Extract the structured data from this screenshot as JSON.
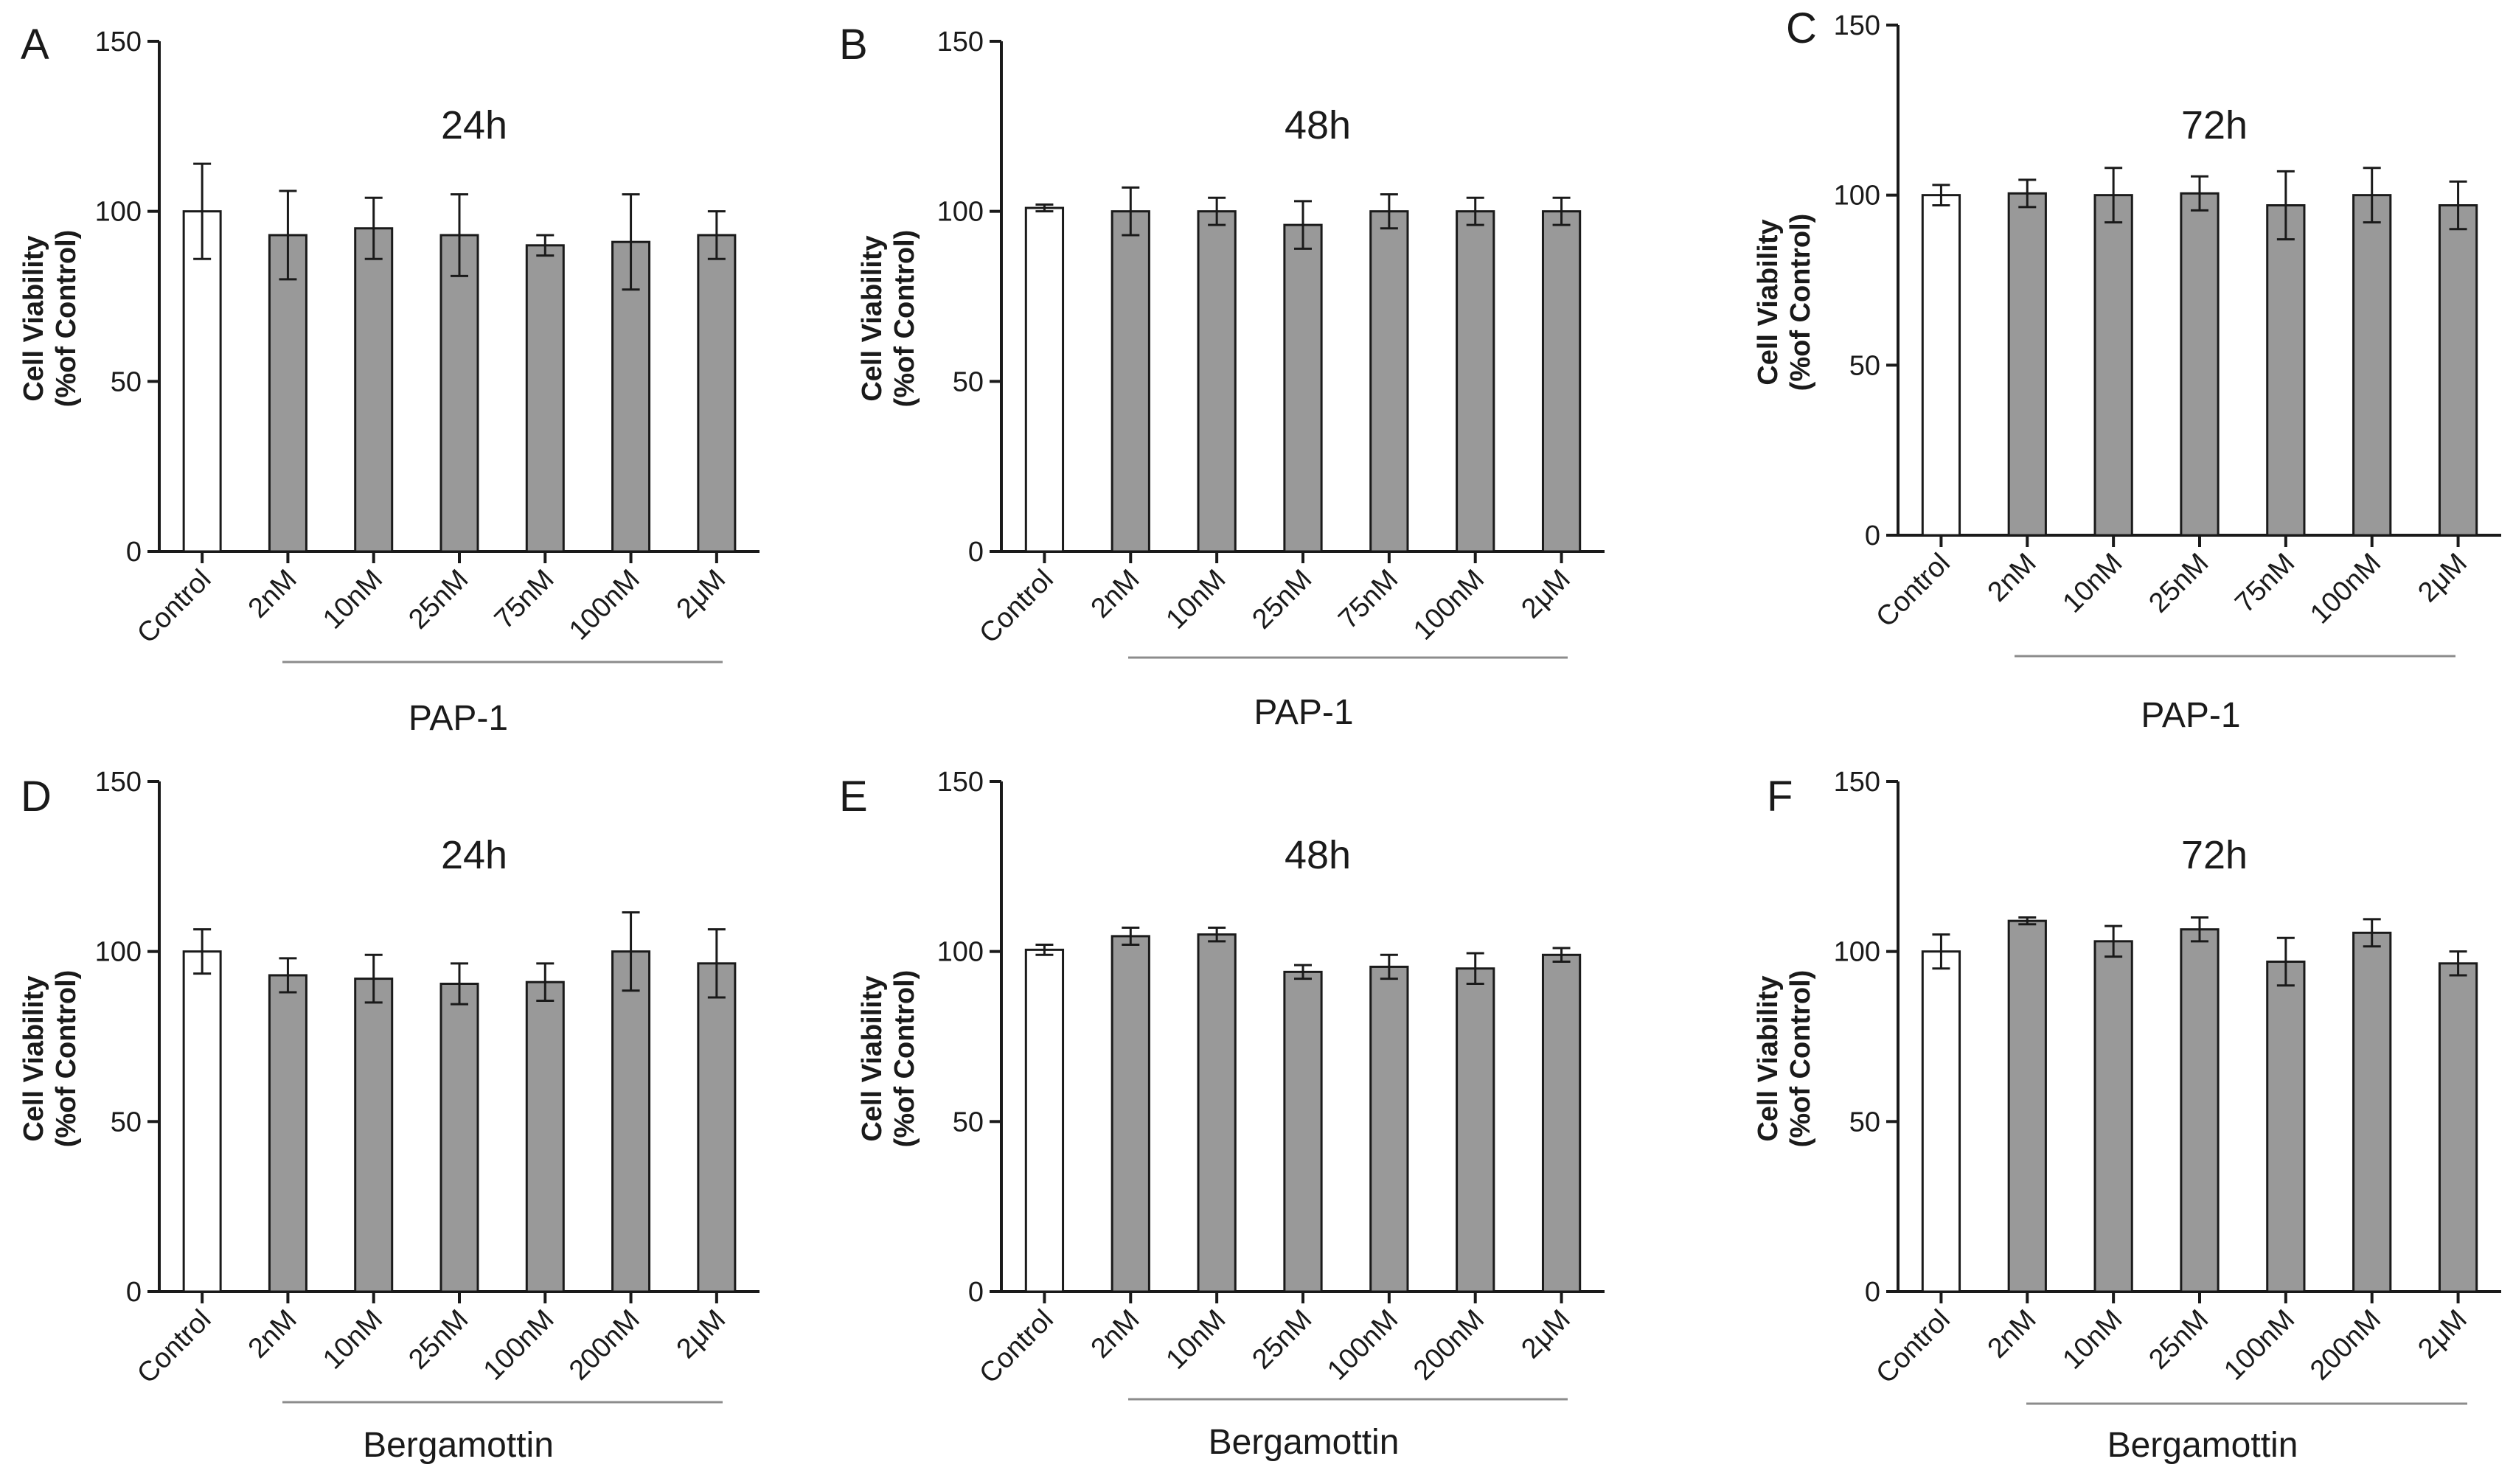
{
  "colors": {
    "control_fill": "#ffffff",
    "treatment_fill": "#999999",
    "bar_stroke": "#1a1a1a",
    "axis": "#1a1a1a",
    "group_line": "#8c8c8c"
  },
  "chart_data": [
    {
      "panel": "A",
      "type": "bar",
      "title": "24h",
      "ylabel_line1": "Cell Viability",
      "ylabel_line2": "(%of Control)",
      "ylim": [
        0,
        150
      ],
      "yticks": [
        "0",
        "50",
        "100",
        "150"
      ],
      "group_label": "PAP-1",
      "categories": [
        "Control",
        "2nM",
        "10nM",
        "25nM",
        "75nM",
        "100nM",
        "2μM"
      ],
      "values": [
        100,
        93,
        95,
        93,
        90,
        91,
        93
      ],
      "errors": [
        14,
        13,
        9,
        12,
        3,
        14,
        7
      ]
    },
    {
      "panel": "B",
      "type": "bar",
      "title": "48h",
      "ylabel_line1": "Cell Viability",
      "ylabel_line2": "(%of Control)",
      "ylim": [
        0,
        150
      ],
      "yticks": [
        "0",
        "50",
        "100",
        "150"
      ],
      "group_label": "PAP-1",
      "categories": [
        "Control",
        "2nM",
        "10nM",
        "25nM",
        "75nM",
        "100nM",
        "2μM"
      ],
      "values": [
        101,
        100,
        100,
        96,
        100,
        100,
        100
      ],
      "errors": [
        1,
        7,
        4,
        7,
        5,
        4,
        4
      ]
    },
    {
      "panel": "C",
      "type": "bar",
      "title": "72h",
      "ylabel_line1": "Cell Viability",
      "ylabel_line2": "(%of Control)",
      "ylim": [
        0,
        150
      ],
      "yticks": [
        "0",
        "50",
        "100",
        "150"
      ],
      "group_label": "PAP-1",
      "categories": [
        "Control",
        "2nM",
        "10nM",
        "25nM",
        "75nM",
        "100nM",
        "2μM"
      ],
      "values": [
        100,
        100.5,
        100,
        100.5,
        97,
        100,
        97
      ],
      "errors": [
        3,
        4,
        8,
        5,
        10,
        8,
        7
      ]
    },
    {
      "panel": "D",
      "type": "bar",
      "title": "24h",
      "ylabel_line1": "Cell Viability",
      "ylabel_line2": "(%of Control)",
      "ylim": [
        0,
        150
      ],
      "yticks": [
        "0",
        "50",
        "100",
        "150"
      ],
      "group_label": "Bergamottin",
      "categories": [
        "Control",
        "2nM",
        "10nM",
        "25nM",
        "100nM",
        "200nM",
        "2μM"
      ],
      "values": [
        100,
        93,
        92,
        90.5,
        91,
        100,
        96.5
      ],
      "errors": [
        6.5,
        5,
        7,
        6,
        5.5,
        11.5,
        10
      ]
    },
    {
      "panel": "E",
      "type": "bar",
      "title": "48h",
      "ylabel_line1": "Cell Viability",
      "ylabel_line2": "(%of Control)",
      "ylim": [
        0,
        150
      ],
      "yticks": [
        "0",
        "50",
        "100",
        "150"
      ],
      "group_label": "Bergamottin",
      "categories": [
        "Control",
        "2nM",
        "10nM",
        "25nM",
        "100nM",
        "200nM",
        "2μM"
      ],
      "values": [
        100.5,
        104.5,
        105,
        94,
        95.5,
        95,
        99
      ],
      "errors": [
        1.5,
        2.5,
        2,
        2,
        3.5,
        4.5,
        2
      ]
    },
    {
      "panel": "F",
      "type": "bar",
      "title": "72h",
      "ylabel_line1": "Cell Viability",
      "ylabel_line2": "(%of Control)",
      "ylim": [
        0,
        150
      ],
      "yticks": [
        "0",
        "50",
        "100",
        "150"
      ],
      "group_label": "Bergamottin",
      "categories": [
        "Control",
        "2nM",
        "10nM",
        "25nM",
        "100nM",
        "200nM",
        "2μM"
      ],
      "values": [
        100,
        109,
        103,
        106.5,
        97,
        105.5,
        96.5
      ],
      "errors": [
        5,
        1,
        4.5,
        3.5,
        7,
        4,
        3.5
      ]
    }
  ]
}
